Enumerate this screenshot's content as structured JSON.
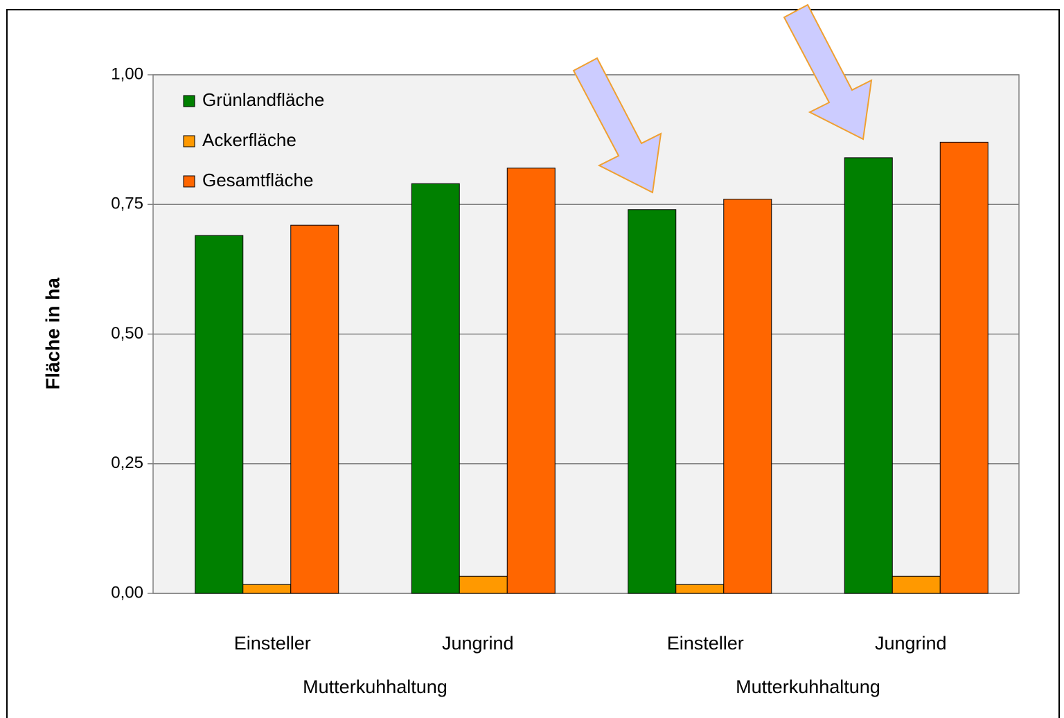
{
  "chart_data": {
    "type": "bar",
    "y_label": "Fläche in ha",
    "categories": [
      "Einsteller",
      "Jungrind",
      "Einsteller",
      "Jungrind"
    ],
    "category_groups": [
      "Mutterkuhhaltung",
      "Mutterkuhhaltung"
    ],
    "series": [
      {
        "name": "Grünlandfläche",
        "color": "#008000",
        "values": [
          0.69,
          0.79,
          0.74,
          0.84
        ]
      },
      {
        "name": "Ackerfläche",
        "color": "#ff9900",
        "values": [
          0.017,
          0.033,
          0.017,
          0.033
        ]
      },
      {
        "name": "Gesamtfläche",
        "color": "#ff6600",
        "values": [
          0.71,
          0.82,
          0.76,
          0.87
        ]
      }
    ],
    "ylim": [
      0,
      1
    ],
    "yticks": [
      {
        "value": 0,
        "label": "0,00"
      },
      {
        "value": 0.25,
        "label": "0,25"
      },
      {
        "value": 0.5,
        "label": "0,50"
      },
      {
        "value": 0.75,
        "label": "0,75"
      },
      {
        "value": 1,
        "label": "1,00"
      }
    ],
    "grid": true,
    "legend": "top-left"
  }
}
